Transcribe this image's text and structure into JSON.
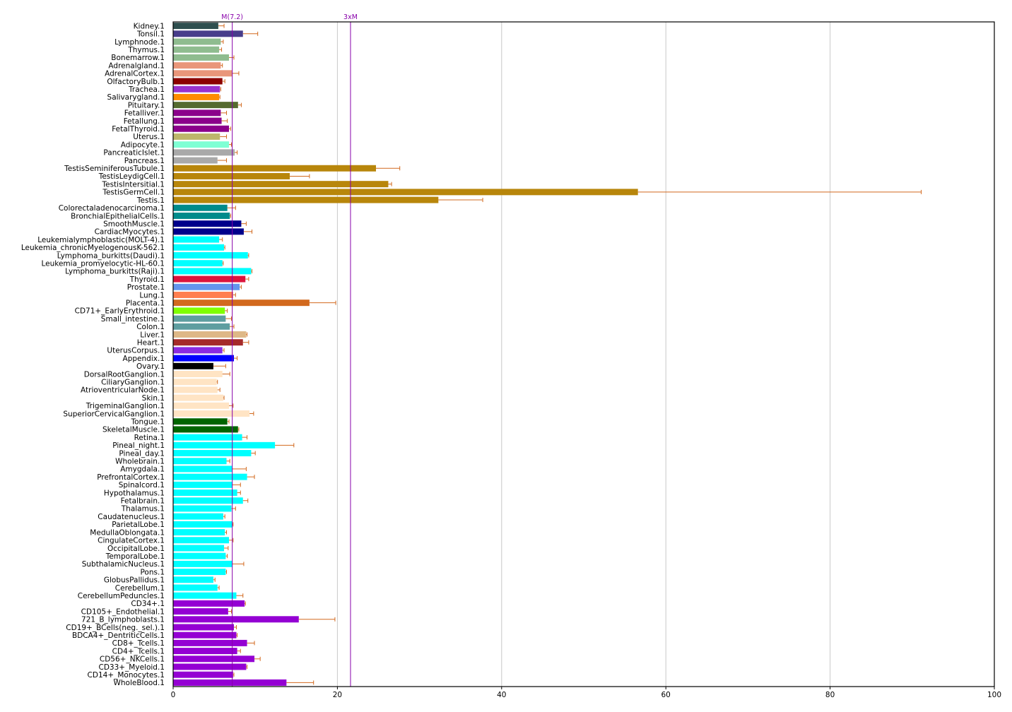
{
  "chart_data": {
    "type": "bar",
    "orientation": "horizontal",
    "grid": "vertical",
    "xlim": [
      0,
      100
    ],
    "x_ticks": [
      0,
      20,
      40,
      60,
      80,
      100
    ],
    "reference_lines": [
      {
        "label": "M(7.2)",
        "value": 7.2,
        "color": "#8800aa"
      },
      {
        "label": "3xM",
        "value": 21.6,
        "color": "#8800aa"
      }
    ],
    "error_color": "#d2691e",
    "categories": [
      "Kidney.1",
      "Tonsil.1",
      "Lymphnode.1",
      "Thymus.1",
      "Bonemarrow.1",
      "Adrenalgland.1",
      "AdrenalCortex.1",
      "OlfactoryBulb.1",
      "Trachea.1",
      "Salivarygland.1",
      "Pituitary.1",
      "Fetalliver.1",
      "Fetallung.1",
      "FetalThyroid.1",
      "Uterus.1",
      "Adipocyte.1",
      "PancreaticIslet.1",
      "Pancreas.1",
      "TestisSeminiferousTubule.1",
      "TestisLeydigCell.1",
      "TestisIntersitial.1",
      "TestisGermCell.1",
      "Testis.1",
      "Colorectaladenocarcinoma.1",
      "BronchialEpithelialCells.1",
      "SmoothMuscle.1",
      "CardiacMyocytes.1",
      "Leukemialymphoblastic(MOLT-4).1",
      "Leukemia_chronicMyelogenousK-562.1",
      "Lymphoma_burkitts(Daudi).1",
      "Leukemia_promyelocytic-HL-60.1",
      "Lymphoma_burkitts(Raji).1",
      "Thyroid.1",
      "Prostate.1",
      "Lung.1",
      "Placenta.1",
      "CD71+_EarlyErythroid.1",
      "Small_intestine.1",
      "Colon.1",
      "Liver.1",
      "Heart.1",
      "UterusCorpus.1",
      "Appendix.1",
      "Ovary.1",
      "DorsalRootGanglion.1",
      "CiliaryGanglion.1",
      "AtrioventricularNode.1",
      "Skin.1",
      "TrigeminalGanglion.1",
      "SuperiorCervicalGanglion.1",
      "Tongue.1",
      "SkeletalMuscle.1",
      "Retina.1",
      "Pineal_night.1",
      "Pineal_day.1",
      "Wholebrain.1",
      "Amygdala.1",
      "PrefrontalCortex.1",
      "Spinalcord.1",
      "Hypothalamus.1",
      "Fetalbrain.1",
      "Thalamus.1",
      "Caudatenucleus.1",
      "ParietalLobe.1",
      "MedullaOblongata.1",
      "CingulateCortex.1",
      "OccipitalLobe.1",
      "TemporalLobe.1",
      "SubthalamicNucleus.1",
      "Pons.1",
      "GlobusPallidus.1",
      "Cerebellum.1",
      "CerebellumPeduncles.1",
      "CD34+.1",
      "CD105+_Endothelial.1",
      "721_B_lymphoblasts.1",
      "CD19+_BCells(neg._sel.).1",
      "BDCA4+_DentriticCells.1",
      "CD8+_Tcells.1",
      "CD4+_Tcells.1",
      "CD56+_NKCells.1",
      "CD33+_Myeloid.1",
      "CD14+_Monocytes.1",
      "WholeBlood.1"
    ],
    "values": [
      5.5,
      8.5,
      5.8,
      5.6,
      6.8,
      5.8,
      7.2,
      6.0,
      5.7,
      5.6,
      7.9,
      5.8,
      5.9,
      6.8,
      5.7,
      6.8,
      7.5,
      5.4,
      24.7,
      14.2,
      26.2,
      56.6,
      32.3,
      6.6,
      6.9,
      8.3,
      8.6,
      5.6,
      6.2,
      9.1,
      6.0,
      9.5,
      8.8,
      8.1,
      7.3,
      16.6,
      6.3,
      6.4,
      6.9,
      8.9,
      8.5,
      6.0,
      7.4,
      4.9,
      6.0,
      5.3,
      5.4,
      6.1,
      6.8,
      9.3,
      6.6,
      7.9,
      8.4,
      12.4,
      9.5,
      6.5,
      7.2,
      9.0,
      7.2,
      7.8,
      8.5,
      7.1,
      6.1,
      7.2,
      6.3,
      6.8,
      6.2,
      6.4,
      7.2,
      6.4,
      4.9,
      5.4,
      7.7,
      8.7,
      6.7,
      15.3,
      7.4,
      7.7,
      9.0,
      7.8,
      9.9,
      8.9,
      7.3,
      13.8
    ],
    "errors": [
      0.7,
      1.8,
      0.3,
      0.3,
      0.6,
      0.2,
      0.8,
      0.3,
      0.1,
      0.1,
      0.4,
      0.7,
      0.7,
      0.2,
      0.8,
      0.3,
      0.3,
      1.1,
      2.9,
      2.4,
      0.4,
      34.5,
      5.4,
      1.0,
      0.1,
      0.6,
      1.0,
      0.4,
      0.1,
      0.1,
      0.1,
      0.1,
      0.4,
      0.2,
      0.3,
      3.2,
      0.3,
      0.7,
      0.5,
      0.1,
      0.7,
      0.2,
      0.4,
      1.5,
      0.9,
      0.1,
      0.3,
      0.1,
      0.5,
      0.5,
      0.2,
      0.1,
      0.6,
      2.3,
      0.5,
      0.4,
      1.7,
      0.9,
      1.0,
      0.4,
      0.6,
      0.5,
      0.2,
      0.1,
      0.2,
      0.5,
      0.5,
      0.2,
      1.4,
      0.1,
      0.2,
      0.2,
      0.8,
      0.1,
      0.4,
      4.4,
      0.3,
      0.1,
      0.9,
      0.4,
      0.7,
      0.1,
      0.1,
      3.3
    ],
    "colors": [
      "#2f4f4f",
      "#483d8b",
      "#8fbc8f",
      "#8fbc8f",
      "#8fbc8f",
      "#e9967a",
      "#e9967a",
      "#8b0000",
      "#9932cc",
      "#ff8c00",
      "#556b2f",
      "#8b008b",
      "#8b008b",
      "#8b008b",
      "#bdb76b",
      "#7fffd4",
      "#a9a9a9",
      "#a9a9a9",
      "#b8860b",
      "#b8860b",
      "#b8860b",
      "#b8860b",
      "#b8860b",
      "#008b8b",
      "#008b8b",
      "#00008b",
      "#00008b",
      "#00ffff",
      "#00ffff",
      "#00ffff",
      "#00ffff",
      "#00ffff",
      "#dc143c",
      "#6495ed",
      "#ff7f50",
      "#d2691e",
      "#7fff00",
      "#5f9ea0",
      "#5f9ea0",
      "#deb887",
      "#a52a2a",
      "#8a2be2",
      "#0000ff",
      "#000000",
      "#ffe4c4",
      "#ffe4c4",
      "#ffe4c4",
      "#ffe4c4",
      "#ffe4c4",
      "#ffe4c4",
      "#006400",
      "#006400",
      "#00ffff",
      "#00ffff",
      "#00ffff",
      "#00ffff",
      "#00ffff",
      "#00ffff",
      "#00ffff",
      "#00ffff",
      "#00ffff",
      "#00ffff",
      "#00ffff",
      "#00ffff",
      "#00ffff",
      "#00ffff",
      "#00ffff",
      "#00ffff",
      "#00ffff",
      "#00ffff",
      "#00ffff",
      "#00ffff",
      "#00ffff",
      "#9400d3",
      "#9400d3",
      "#9400d3",
      "#9400d3",
      "#9400d3",
      "#9400d3",
      "#9400d3",
      "#9400d3",
      "#9400d3",
      "#9400d3",
      "#9400d3"
    ]
  }
}
